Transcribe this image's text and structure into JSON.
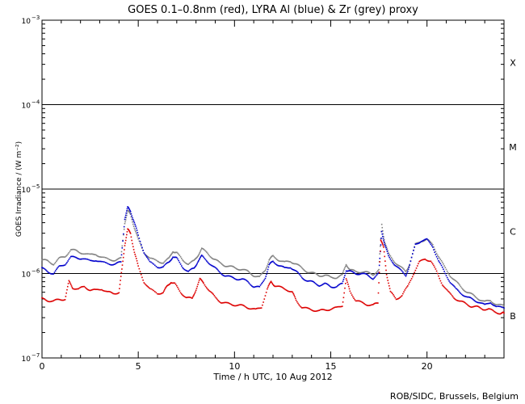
{
  "chart_data": {
    "type": "scatter",
    "title": "GOES 0.1–0.8nm (red), LYRA Al (blue) & Zr (grey) proxy",
    "xlabel": "Time / h UTC, 10 Aug 2012",
    "ylabel": "GOES Irradiance / (W m⁻²)",
    "credit": "ROB/SIDC, Brussels, Belgium",
    "xlim": [
      0,
      24
    ],
    "ylim": [
      1e-07,
      0.001
    ],
    "yscale": "log",
    "x_ticks": [
      0,
      5,
      10,
      15,
      20
    ],
    "y_ticks": [
      {
        "mantissa": "10",
        "exp": "−7",
        "value": 1e-07
      },
      {
        "mantissa": "10",
        "exp": "−6",
        "value": 1e-06
      },
      {
        "mantissa": "10",
        "exp": "−5",
        "value": 1e-05
      },
      {
        "mantissa": "10",
        "exp": "−4",
        "value": 0.0001
      },
      {
        "mantissa": "10",
        "exp": "−3",
        "value": 0.001
      }
    ],
    "flare_classes": [
      {
        "label": "X",
        "value": 0.000316
      },
      {
        "label": "M",
        "value": 3.16e-05
      },
      {
        "label": "C",
        "value": 3.16e-06
      },
      {
        "label": "B",
        "value": 3.16e-07
      }
    ],
    "threshold_lines": [
      1e-06,
      1e-05,
      0.0001
    ],
    "series": [
      {
        "color": "#808080",
        "points": [
          [
            0,
            1.45e-06
          ],
          [
            0.3,
            1.4e-06
          ],
          [
            0.6,
            1.3e-06
          ],
          [
            0.9,
            1.5e-06
          ],
          [
            1.2,
            1.6e-06
          ],
          [
            1.5,
            1.9e-06
          ],
          [
            1.8,
            1.85e-06
          ],
          [
            2.1,
            1.75e-06
          ],
          [
            2.5,
            1.65e-06
          ],
          [
            2.8,
            1.7e-06
          ],
          [
            3.1,
            1.55e-06
          ],
          [
            3.5,
            1.45e-06
          ],
          [
            3.8,
            1.45e-06
          ],
          [
            4.1,
            1.5e-06
          ],
          [
            4.3,
            4e-06
          ],
          [
            4.45,
            5.5e-06
          ],
          [
            4.6,
            5e-06
          ],
          [
            4.8,
            3.5e-06
          ],
          [
            5.0,
            2.5e-06
          ],
          [
            5.3,
            1.8e-06
          ],
          [
            5.6,
            1.5e-06
          ],
          [
            6.0,
            1.4e-06
          ],
          [
            6.3,
            1.35e-06
          ],
          [
            6.6,
            1.5e-06
          ],
          [
            6.8,
            1.85e-06
          ],
          [
            7.0,
            1.75e-06
          ],
          [
            7.3,
            1.45e-06
          ],
          [
            7.6,
            1.3e-06
          ],
          [
            7.9,
            1.4e-06
          ],
          [
            8.1,
            1.65e-06
          ],
          [
            8.3,
            1.95e-06
          ],
          [
            8.6,
            1.75e-06
          ],
          [
            8.9,
            1.5e-06
          ],
          [
            9.2,
            1.35e-06
          ],
          [
            9.5,
            1.25e-06
          ],
          [
            9.8,
            1.2e-06
          ],
          [
            10.1,
            1.15e-06
          ],
          [
            10.4,
            1.12e-06
          ],
          [
            10.7,
            1.05e-06
          ],
          [
            11.0,
            9.5e-07
          ],
          [
            11.3,
            9e-07
          ],
          [
            11.6,
            1.1e-06
          ],
          [
            11.8,
            1.45e-06
          ],
          [
            12.0,
            1.6e-06
          ],
          [
            12.3,
            1.45e-06
          ],
          [
            12.6,
            1.35e-06
          ],
          [
            12.9,
            1.4e-06
          ],
          [
            13.2,
            1.3e-06
          ],
          [
            13.5,
            1.15e-06
          ],
          [
            13.8,
            1.05e-06
          ],
          [
            14.1,
            1e-06
          ],
          [
            14.4,
            9.5e-07
          ],
          [
            14.7,
            9.5e-07
          ],
          [
            15.0,
            9e-07
          ],
          [
            15.3,
            9e-07
          ],
          [
            15.6,
            9.5e-07
          ],
          [
            15.8,
            1.3e-06
          ],
          [
            16.0,
            1.1e-06
          ],
          [
            16.3,
            1.05e-06
          ],
          [
            16.6,
            1.05e-06
          ],
          [
            16.9,
            1.02e-06
          ],
          [
            17.2,
            9.8e-07
          ],
          [
            17.5,
            1.1e-06
          ],
          [
            17.65,
            3.8e-06
          ],
          [
            17.8,
            2.4e-06
          ],
          [
            18.0,
            1.7e-06
          ],
          [
            18.3,
            1.4e-06
          ],
          [
            18.6,
            1.2e-06
          ],
          [
            18.9,
            1.05e-06
          ],
          [
            19.1,
            1.3e-06
          ],
          [
            19.4,
            2.2e-06
          ],
          [
            19.7,
            2.45e-06
          ],
          [
            20.0,
            2.5e-06
          ],
          [
            20.3,
            2.2e-06
          ],
          [
            20.6,
            1.6e-06
          ],
          [
            20.9,
            1.2e-06
          ],
          [
            21.2,
            9.5e-07
          ],
          [
            21.5,
            8e-07
          ],
          [
            21.8,
            6.8e-07
          ],
          [
            22.1,
            6e-07
          ],
          [
            22.4,
            5.5e-07
          ],
          [
            22.7,
            5e-07
          ],
          [
            23.0,
            4.6e-07
          ],
          [
            23.3,
            4.8e-07
          ],
          [
            23.6,
            4.3e-07
          ],
          [
            24.0,
            4.1e-07
          ]
        ]
      },
      {
        "color": "#0000cc",
        "points": [
          [
            0,
            1.15e-06
          ],
          [
            0.3,
            1.05e-06
          ],
          [
            0.6,
            1e-06
          ],
          [
            0.9,
            1.2e-06
          ],
          [
            1.2,
            1.3e-06
          ],
          [
            1.5,
            1.55e-06
          ],
          [
            1.8,
            1.55e-06
          ],
          [
            2.1,
            1.5e-06
          ],
          [
            2.5,
            1.4e-06
          ],
          [
            2.8,
            1.45e-06
          ],
          [
            3.1,
            1.35e-06
          ],
          [
            3.5,
            1.3e-06
          ],
          [
            3.8,
            1.3e-06
          ],
          [
            4.1,
            1.35e-06
          ],
          [
            4.3,
            4.5e-06
          ],
          [
            4.45,
            6e-06
          ],
          [
            4.6,
            5.5e-06
          ],
          [
            4.8,
            4e-06
          ],
          [
            5.0,
            2.8e-06
          ],
          [
            5.3,
            1.8e-06
          ],
          [
            5.6,
            1.35e-06
          ],
          [
            6.0,
            1.2e-06
          ],
          [
            6.3,
            1.2e-06
          ],
          [
            6.6,
            1.35e-06
          ],
          [
            6.8,
            1.6e-06
          ],
          [
            7.0,
            1.5e-06
          ],
          [
            7.3,
            1.2e-06
          ],
          [
            7.6,
            1.05e-06
          ],
          [
            7.9,
            1.15e-06
          ],
          [
            8.1,
            1.4e-06
          ],
          [
            8.3,
            1.6e-06
          ],
          [
            8.6,
            1.4e-06
          ],
          [
            8.9,
            1.2e-06
          ],
          [
            9.2,
            1.05e-06
          ],
          [
            9.5,
            9.5e-07
          ],
          [
            9.8,
            9e-07
          ],
          [
            10.1,
            8.7e-07
          ],
          [
            10.4,
            8.5e-07
          ],
          [
            10.7,
            8e-07
          ],
          [
            11.0,
            7e-07
          ],
          [
            11.3,
            6.8e-07
          ],
          [
            11.6,
            9e-07
          ],
          [
            11.8,
            1.25e-06
          ],
          [
            12.0,
            1.4e-06
          ],
          [
            12.3,
            1.25e-06
          ],
          [
            12.6,
            1.15e-06
          ],
          [
            12.9,
            1.2e-06
          ],
          [
            13.2,
            1.05e-06
          ],
          [
            13.5,
            9e-07
          ],
          [
            13.8,
            8.2e-07
          ],
          [
            14.1,
            7.8e-07
          ],
          [
            14.4,
            7.3e-07
          ],
          [
            14.7,
            7.5e-07
          ],
          [
            15.0,
            7e-07
          ],
          [
            15.3,
            7e-07
          ],
          [
            15.6,
            7.5e-07
          ],
          [
            15.8,
            1.1e-06
          ],
          [
            16.0,
            1.05e-06
          ],
          [
            16.3,
            1e-06
          ],
          [
            16.6,
            1e-06
          ],
          [
            16.9,
            9.5e-07
          ],
          [
            17.2,
            8.8e-07
          ],
          [
            17.5,
            1e-06
          ],
          [
            17.65,
            3.2e-06
          ],
          [
            17.8,
            2.2e-06
          ],
          [
            18.0,
            1.6e-06
          ],
          [
            18.3,
            1.3e-06
          ],
          [
            18.6,
            1.1e-06
          ],
          [
            18.9,
            9.5e-07
          ],
          [
            19.1,
            1.25e-06
          ],
          [
            19.4,
            2.2e-06
          ],
          [
            19.7,
            2.45e-06
          ],
          [
            20.0,
            2.5e-06
          ],
          [
            20.3,
            2.1e-06
          ],
          [
            20.6,
            1.4e-06
          ],
          [
            20.9,
            1.05e-06
          ],
          [
            21.2,
            8e-07
          ],
          [
            21.5,
            6.5e-07
          ],
          [
            21.8,
            5.8e-07
          ],
          [
            22.1,
            5.2e-07
          ],
          [
            22.4,
            4.9e-07
          ],
          [
            22.7,
            4.6e-07
          ],
          [
            23.0,
            4.2e-07
          ],
          [
            23.3,
            4.6e-07
          ],
          [
            23.6,
            4e-07
          ],
          [
            24.0,
            3.9e-07
          ]
        ]
      },
      {
        "color": "#dd0000",
        "points": [
          [
            0,
            5e-07
          ],
          [
            0.3,
            4.8e-07
          ],
          [
            0.6,
            4.7e-07
          ],
          [
            0.9,
            4.9e-07
          ],
          [
            1.2,
            5e-07
          ],
          [
            1.4,
            8e-07
          ],
          [
            1.6,
            6.8e-07
          ],
          [
            1.9,
            6.5e-07
          ],
          [
            2.2,
            7e-07
          ],
          [
            2.5,
            6.4e-07
          ],
          [
            2.8,
            6.3e-07
          ],
          [
            3.1,
            6.6e-07
          ],
          [
            3.4,
            6e-07
          ],
          [
            3.7,
            5.8e-07
          ],
          [
            4.0,
            6e-07
          ],
          [
            4.15,
            1.1e-06
          ],
          [
            4.3,
            2.2e-06
          ],
          [
            4.45,
            3.3e-06
          ],
          [
            4.6,
            3e-06
          ],
          [
            4.8,
            1.8e-06
          ],
          [
            5.0,
            1.2e-06
          ],
          [
            5.3,
            8e-07
          ],
          [
            5.6,
            6.5e-07
          ],
          [
            6.0,
            5.8e-07
          ],
          [
            6.3,
            6e-07
          ],
          [
            6.5,
            7e-07
          ],
          [
            6.7,
            8e-07
          ],
          [
            6.9,
            7.5e-07
          ],
          [
            7.2,
            6e-07
          ],
          [
            7.5,
            5.2e-07
          ],
          [
            7.8,
            5e-07
          ],
          [
            8.0,
            6.5e-07
          ],
          [
            8.2,
            8.5e-07
          ],
          [
            8.4,
            7.8e-07
          ],
          [
            8.7,
            6.2e-07
          ],
          [
            9.0,
            5.2e-07
          ],
          [
            9.3,
            4.6e-07
          ],
          [
            9.6,
            4.4e-07
          ],
          [
            9.9,
            4.3e-07
          ],
          [
            10.2,
            4.2e-07
          ],
          [
            10.5,
            4.1e-07
          ],
          [
            10.8,
            3.9e-07
          ],
          [
            11.1,
            3.7e-07
          ],
          [
            11.4,
            4e-07
          ],
          [
            11.7,
            6.5e-07
          ],
          [
            11.9,
            8e-07
          ],
          [
            12.1,
            7.2e-07
          ],
          [
            12.4,
            6.8e-07
          ],
          [
            12.7,
            6.5e-07
          ],
          [
            13.0,
            6e-07
          ],
          [
            13.2,
            4.8e-07
          ],
          [
            13.5,
            4e-07
          ],
          [
            13.8,
            3.8e-07
          ],
          [
            14.1,
            3.7e-07
          ],
          [
            14.4,
            3.6e-07
          ],
          [
            14.7,
            3.7e-07
          ],
          [
            15.0,
            3.8e-07
          ],
          [
            15.3,
            3.9e-07
          ],
          [
            15.6,
            4.2e-07
          ],
          [
            15.8,
            8.5e-07
          ],
          [
            16.0,
            6.2e-07
          ],
          [
            16.3,
            4.8e-07
          ],
          [
            16.6,
            4.5e-07
          ],
          [
            16.9,
            4.3e-07
          ],
          [
            17.2,
            4.2e-07
          ],
          [
            17.45,
            4.5e-07
          ],
          [
            17.6,
            2.5e-06
          ],
          [
            17.75,
            2e-06
          ],
          [
            17.9,
            1e-06
          ],
          [
            18.1,
            6e-07
          ],
          [
            18.4,
            5e-07
          ],
          [
            18.7,
            5.5e-07
          ],
          [
            19.0,
            7e-07
          ],
          [
            19.3,
            1e-06
          ],
          [
            19.6,
            1.35e-06
          ],
          [
            19.9,
            1.5e-06
          ],
          [
            20.2,
            1.4e-06
          ],
          [
            20.5,
            1.05e-06
          ],
          [
            20.8,
            7.5e-07
          ],
          [
            21.1,
            6e-07
          ],
          [
            21.4,
            5.2e-07
          ],
          [
            21.7,
            4.7e-07
          ],
          [
            22.0,
            4.4e-07
          ],
          [
            22.3,
            4.1e-07
          ],
          [
            22.6,
            4e-07
          ],
          [
            22.9,
            3.8e-07
          ],
          [
            23.2,
            3.8e-07
          ],
          [
            23.5,
            3.5e-07
          ],
          [
            23.8,
            3.4e-07
          ],
          [
            24.0,
            3.4e-07
          ]
        ]
      }
    ]
  }
}
